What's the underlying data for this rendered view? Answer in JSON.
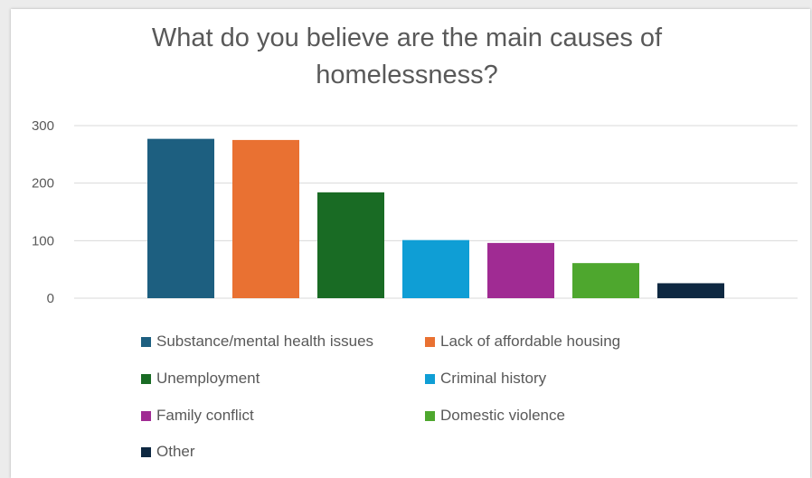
{
  "chart_data": {
    "type": "bar",
    "title": "What do you believe are the main causes of homelessness?",
    "title_lines": [
      "What do you believe are the main causes of",
      "homelessness?"
    ],
    "categories": [
      "Substance/mental health issues",
      "Lack of affordable housing",
      "Unemployment",
      "Criminal history",
      "Family conflict",
      "Domestic violence",
      "Other"
    ],
    "values": [
      277,
      275,
      184,
      101,
      96,
      61,
      26
    ],
    "colors": [
      "#1d5f80",
      "#e97132",
      "#196b24",
      "#0f9ed5",
      "#a02b93",
      "#4ea72e",
      "#0e2841"
    ],
    "ylim": [
      0,
      300
    ],
    "yticks": [
      "0",
      "100",
      "200",
      "300"
    ],
    "grid": true,
    "legend_position": "bottom",
    "xlabel": "",
    "ylabel": ""
  }
}
